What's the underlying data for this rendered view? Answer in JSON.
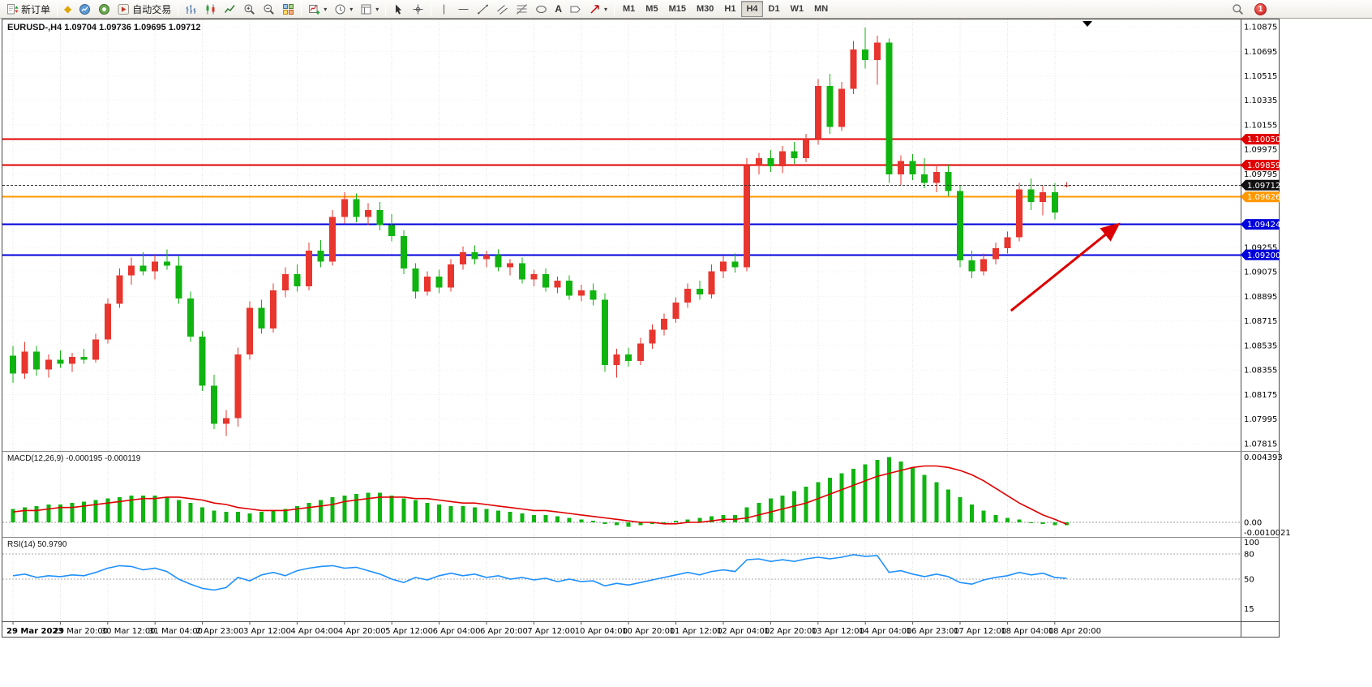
{
  "toolbar": {
    "new_order_label": "新订单",
    "auto_trading_label": "自动交易",
    "text_tool_label": "A",
    "timeframes": [
      "M1",
      "M5",
      "M15",
      "M30",
      "H1",
      "H4",
      "D1",
      "W1",
      "MN"
    ],
    "active_timeframe": "H4",
    "notification_count": "1"
  },
  "chart": {
    "symbol_label": "EURUSD-,H4 1.09704 1.09736 1.09695 1.09712",
    "macd_label": "MACD(12,26,9) -0.000195 -0.000119",
    "rsi_label": "RSI(14) 50.9790"
  },
  "chart_data": {
    "type": "candlestick+indicators",
    "symbol": "EURUSD-",
    "timeframe": "H4",
    "current_ohlc": {
      "open": 1.09704,
      "high": 1.09736,
      "low": 1.09695,
      "close": 1.09712
    },
    "colors": {
      "up": "#e8352e",
      "down": "#10b410",
      "macd_hist": "#10b410",
      "macd_signal": "#e00000",
      "rsi": "#1e90ff",
      "bid": "#111111",
      "grid": "#e3e3e3"
    },
    "price_ticks": [
      1.10875,
      1.10695,
      1.10515,
      1.10335,
      1.10155,
      1.09975,
      1.09795,
      1.09615,
      1.09435,
      1.09255,
      1.09075,
      1.08895,
      1.08715,
      1.08535,
      1.08355,
      1.08175,
      1.07995,
      1.07815
    ],
    "hlines": [
      {
        "price": 1.1005,
        "label": "1.10050",
        "color": "#e00000"
      },
      {
        "price": 1.09859,
        "label": "1.09859",
        "color": "#e00000"
      },
      {
        "price": 1.09626,
        "label": "1.09626",
        "color": "#ff9800"
      },
      {
        "price": 1.09424,
        "label": "1.09424",
        "color": "#0000dc"
      },
      {
        "price": 1.092,
        "label": "1.09200",
        "color": "#0000dc"
      }
    ],
    "bid": {
      "price": 1.09712,
      "label": "1.09712",
      "color": "#111111"
    },
    "time_labels": [
      "29 Mar 2023",
      "29 Mar 20:00",
      "30 Mar 12:00",
      "31 Mar 04:00",
      "2 Apr 23:00",
      "3 Apr 12:00",
      "4 Apr 04:00",
      "4 Apr 20:00",
      "5 Apr 12:00",
      "6 Apr 04:00",
      "6 Apr 20:00",
      "7 Apr 12:00",
      "10 Apr 04:00",
      "10 Apr 20:00",
      "11 Apr 12:00",
      "12 Apr 04:00",
      "12 Apr 20:00",
      "13 Apr 12:00",
      "14 Apr 04:00",
      "16 Apr 23:00",
      "17 Apr 12:00",
      "18 Apr 04:00",
      "18 Apr 20:00"
    ],
    "candles": [
      [
        1.0846,
        1.0853,
        1.0826,
        1.0833
      ],
      [
        1.0833,
        1.0856,
        1.0829,
        1.0849
      ],
      [
        1.0849,
        1.0853,
        1.0831,
        1.0836
      ],
      [
        1.0836,
        1.0847,
        1.083,
        1.0843
      ],
      [
        1.0843,
        1.085,
        1.0837,
        1.084
      ],
      [
        1.084,
        1.0848,
        1.0834,
        1.0845
      ],
      [
        1.0845,
        1.0851,
        1.084,
        1.0843
      ],
      [
        1.0843,
        1.0862,
        1.0841,
        1.0858
      ],
      [
        1.0858,
        1.0888,
        1.0855,
        1.0884
      ],
      [
        1.0884,
        1.091,
        1.0881,
        1.0905
      ],
      [
        1.0905,
        1.0918,
        1.0898,
        1.0912
      ],
      [
        1.0912,
        1.0922,
        1.0905,
        1.0908
      ],
      [
        1.0908,
        1.092,
        1.0902,
        1.0915
      ],
      [
        1.0915,
        1.0924,
        1.0909,
        1.0912
      ],
      [
        1.0912,
        1.0919,
        1.0884,
        1.0888
      ],
      [
        1.0888,
        1.0893,
        1.0856,
        1.086
      ],
      [
        1.086,
        1.0864,
        1.082,
        1.0824
      ],
      [
        1.0824,
        1.0832,
        1.0792,
        1.0796
      ],
      [
        1.0796,
        1.0806,
        1.0787,
        1.08
      ],
      [
        1.08,
        1.0852,
        1.0794,
        1.0847
      ],
      [
        1.0847,
        1.0886,
        1.0843,
        1.0881
      ],
      [
        1.0881,
        1.0887,
        1.0862,
        1.0866
      ],
      [
        1.0866,
        1.0899,
        1.0863,
        1.0894
      ],
      [
        1.0894,
        1.0911,
        1.0889,
        1.0906
      ],
      [
        1.0906,
        1.0913,
        1.0893,
        1.0897
      ],
      [
        1.0897,
        1.0929,
        1.0894,
        1.0923
      ],
      [
        1.0923,
        1.0931,
        1.0911,
        1.0915
      ],
      [
        1.0915,
        1.0953,
        1.0912,
        1.0948
      ],
      [
        1.0948,
        1.0966,
        1.0943,
        1.0961
      ],
      [
        1.0961,
        1.0965,
        1.0944,
        1.0948
      ],
      [
        1.0948,
        1.0958,
        1.0942,
        1.0953
      ],
      [
        1.0953,
        1.0959,
        1.0938,
        1.0942
      ],
      [
        1.0942,
        1.095,
        1.093,
        1.0934
      ],
      [
        1.0934,
        1.0938,
        1.0906,
        1.091
      ],
      [
        1.091,
        1.0914,
        1.0888,
        1.0893
      ],
      [
        1.0893,
        1.0908,
        1.089,
        1.0904
      ],
      [
        1.0904,
        1.0909,
        1.0892,
        1.0896
      ],
      [
        1.0896,
        1.0917,
        1.0893,
        1.0913
      ],
      [
        1.0913,
        1.0926,
        1.0909,
        1.0922
      ],
      [
        1.0922,
        1.0927,
        1.0913,
        1.0917
      ],
      [
        1.0917,
        1.0923,
        1.0911,
        1.092
      ],
      [
        1.092,
        1.0924,
        1.0908,
        1.0911
      ],
      [
        1.0911,
        1.0917,
        1.0905,
        1.0914
      ],
      [
        1.0914,
        1.0918,
        1.0899,
        1.0902
      ],
      [
        1.0902,
        1.0909,
        1.0897,
        1.0906
      ],
      [
        1.0906,
        1.091,
        1.0893,
        1.0896
      ],
      [
        1.0896,
        1.0904,
        1.0892,
        1.0901
      ],
      [
        1.0901,
        1.0905,
        1.0887,
        1.089
      ],
      [
        1.089,
        1.0898,
        1.0886,
        1.0894
      ],
      [
        1.0894,
        1.0899,
        1.0883,
        1.0887
      ],
      [
        1.0887,
        1.0892,
        1.0834,
        1.0839
      ],
      [
        1.0839,
        1.0851,
        1.083,
        1.0847
      ],
      [
        1.0847,
        1.0852,
        1.0838,
        1.0842
      ],
      [
        1.0842,
        1.0859,
        1.0839,
        1.0855
      ],
      [
        1.0855,
        1.0869,
        1.0851,
        1.0865
      ],
      [
        1.0865,
        1.0877,
        1.0861,
        1.0873
      ],
      [
        1.0873,
        1.0889,
        1.087,
        1.0885
      ],
      [
        1.0885,
        1.0899,
        1.0881,
        1.0895
      ],
      [
        1.0895,
        1.0901,
        1.0887,
        1.0891
      ],
      [
        1.0891,
        1.0913,
        1.0888,
        1.0908
      ],
      [
        1.0908,
        1.0919,
        1.0903,
        1.0915
      ],
      [
        1.0915,
        1.0921,
        1.0907,
        1.0911
      ],
      [
        1.0911,
        1.0991,
        1.0908,
        1.0986
      ],
      [
        1.0986,
        1.0995,
        1.0979,
        1.0991
      ],
      [
        1.0991,
        1.0997,
        1.0981,
        1.0985
      ],
      [
        1.0985,
        1.1,
        1.098,
        1.0996
      ],
      [
        1.0996,
        1.1003,
        1.0987,
        1.0991
      ],
      [
        1.0991,
        1.1009,
        1.0988,
        1.1005
      ],
      [
        1.1005,
        1.1049,
        1.1001,
        1.1044
      ],
      [
        1.1044,
        1.1053,
        1.1009,
        1.1014
      ],
      [
        1.1014,
        1.1047,
        1.1011,
        1.1042
      ],
      [
        1.1042,
        1.1077,
        1.1038,
        1.1071
      ],
      [
        1.1071,
        1.1087,
        1.1057,
        1.1063
      ],
      [
        1.1063,
        1.1081,
        1.1045,
        1.1076
      ],
      [
        1.1076,
        1.1079,
        1.0973,
        1.0979
      ],
      [
        1.0979,
        1.0993,
        1.0971,
        1.0989
      ],
      [
        1.0989,
        1.0994,
        1.0975,
        1.0979
      ],
      [
        1.0979,
        1.0991,
        1.0969,
        1.0973
      ],
      [
        1.0973,
        1.0985,
        1.0966,
        1.0981
      ],
      [
        1.0981,
        1.0986,
        1.0963,
        1.0967
      ],
      [
        1.0967,
        1.0971,
        1.0911,
        1.0916
      ],
      [
        1.0916,
        1.0923,
        1.0903,
        1.0908
      ],
      [
        1.0908,
        1.0921,
        1.0905,
        1.0917
      ],
      [
        1.0917,
        1.0929,
        1.0913,
        1.0925
      ],
      [
        1.0925,
        1.0937,
        1.0921,
        1.0933
      ],
      [
        1.0933,
        1.0973,
        1.093,
        1.0968
      ],
      [
        1.0968,
        1.0976,
        1.0953,
        1.0959
      ],
      [
        1.0959,
        1.0971,
        1.0949,
        1.0966
      ],
      [
        1.0966,
        1.0973,
        1.0946,
        1.0951
      ],
      [
        1.09704,
        1.09736,
        1.09695,
        1.09712
      ]
    ],
    "macd": {
      "params": "12,26,9",
      "hist": [
        0.0009,
        0.001,
        0.0011,
        0.0012,
        0.0012,
        0.0013,
        0.0014,
        0.0015,
        0.0016,
        0.0017,
        0.0018,
        0.0018,
        0.0018,
        0.0017,
        0.0015,
        0.0013,
        0.001,
        0.0008,
        0.0007,
        0.0007,
        0.0006,
        0.0007,
        0.0008,
        0.0009,
        0.0011,
        0.0013,
        0.0015,
        0.0017,
        0.0018,
        0.0019,
        0.002,
        0.002,
        0.0018,
        0.0016,
        0.0015,
        0.0013,
        0.0012,
        0.0011,
        0.0011,
        0.001,
        0.0009,
        0.0008,
        0.0007,
        0.0006,
        0.0005,
        0.0005,
        0.0004,
        0.0003,
        0.0002,
        0.0001,
        -0.0001,
        -0.0002,
        -0.0003,
        -0.0002,
        -0.0001,
        0.0,
        0.0001,
        0.0002,
        0.0003,
        0.0004,
        0.0005,
        0.0005,
        0.001,
        0.0013,
        0.0016,
        0.0018,
        0.0021,
        0.0024,
        0.0027,
        0.003,
        0.0033,
        0.0036,
        0.0039,
        0.0042,
        0.0044,
        0.0041,
        0.0037,
        0.0032,
        0.0027,
        0.0022,
        0.0017,
        0.0012,
        0.0008,
        0.0005,
        0.0003,
        0.0002,
        0.0,
        -0.0001,
        -0.0002,
        -0.000195
      ],
      "signal": [
        0.0007,
        0.0008,
        0.0008,
        0.0009,
        0.001,
        0.001,
        0.0011,
        0.0012,
        0.0013,
        0.0014,
        0.0015,
        0.0016,
        0.0016,
        0.0017,
        0.0017,
        0.0016,
        0.0015,
        0.0013,
        0.0012,
        0.001,
        0.0009,
        0.0008,
        0.0008,
        0.0008,
        0.0009,
        0.001,
        0.0011,
        0.0012,
        0.0014,
        0.0015,
        0.0016,
        0.0017,
        0.0017,
        0.0017,
        0.0016,
        0.0016,
        0.0015,
        0.0014,
        0.0013,
        0.0013,
        0.0012,
        0.0011,
        0.001,
        0.0009,
        0.0008,
        0.0008,
        0.0007,
        0.0006,
        0.0005,
        0.0004,
        0.0003,
        0.0002,
        0.0001,
        0.0,
        0.0,
        -0.0001,
        -0.0001,
        0.0,
        0.0,
        0.0001,
        0.0002,
        0.0002,
        0.0003,
        0.0005,
        0.0007,
        0.0009,
        0.0011,
        0.0013,
        0.0016,
        0.0019,
        0.0022,
        0.0025,
        0.0028,
        0.0031,
        0.0033,
        0.0035,
        0.0037,
        0.0038,
        0.0038,
        0.0037,
        0.0035,
        0.0032,
        0.0028,
        0.0023,
        0.0018,
        0.0013,
        0.0009,
        0.0005,
        0.0002,
        -0.000119
      ],
      "scale": [
        {
          "label": "0.004393",
          "value": 0.004393
        },
        {
          "label": "0.00",
          "value": 0
        },
        {
          "label": "-0.0010021",
          "value": -0.0010021
        }
      ]
    },
    "rsi": {
      "period": 14,
      "current": 50.979,
      "values": [
        54,
        56,
        52,
        54,
        53,
        55,
        54,
        58,
        63,
        66,
        65,
        61,
        63,
        59,
        50,
        44,
        39,
        37,
        40,
        52,
        48,
        55,
        58,
        54,
        60,
        63,
        65,
        66,
        63,
        64,
        60,
        56,
        50,
        46,
        52,
        49,
        54,
        57,
        54,
        56,
        52,
        54,
        50,
        52,
        49,
        51,
        47,
        50,
        47,
        48,
        42,
        45,
        43,
        46,
        49,
        52,
        55,
        58,
        55,
        59,
        61,
        59,
        73,
        74,
        71,
        73,
        71,
        74,
        76,
        74,
        76,
        79,
        77,
        78,
        58,
        60,
        56,
        53,
        56,
        53,
        46,
        44,
        49,
        52,
        54,
        58,
        55,
        57,
        52,
        50.979
      ],
      "scale": [
        {
          "label": "100",
          "value": 100,
          "line": false
        },
        {
          "label": "80",
          "value": 80,
          "line": true
        },
        {
          "label": "50",
          "value": 50,
          "line": true
        },
        {
          "label": "15",
          "value": 15,
          "line": false
        }
      ]
    },
    "annotations": {
      "arrow": {
        "color": "#dd0000",
        "from_index": 84.3,
        "from_price": 1.0879,
        "to_index": 93.3,
        "to_price": 1.0942
      }
    }
  }
}
